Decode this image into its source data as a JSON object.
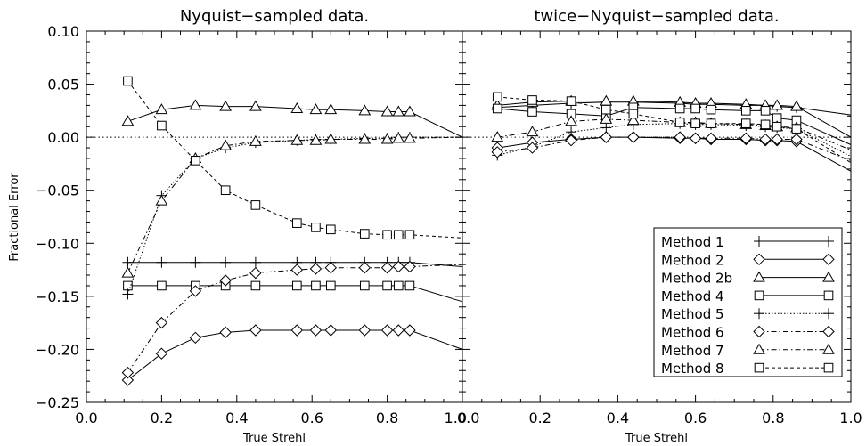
{
  "chart_data": [
    {
      "type": "line",
      "title": "Nyquist−sampled data.",
      "xlabel": "True Strehl",
      "ylabel": "Fractional Error",
      "xlim": [
        0.0,
        1.0
      ],
      "ylim": [
        -0.25,
        0.1
      ],
      "xticks": [
        0.0,
        0.2,
        0.4,
        0.6,
        0.8,
        1.0
      ],
      "xtick_labels": [
        "0.0",
        "0.2",
        "0.4",
        "0.6",
        "0.8",
        "1.0"
      ],
      "yticks": [
        -0.25,
        -0.2,
        -0.15,
        -0.1,
        -0.05,
        0.0,
        0.05,
        0.1
      ],
      "ytick_labels": [
        "−0.25",
        "−0.20",
        "−0.15",
        "−0.10",
        "−0.05",
        "0.00",
        "0.05",
        "0.10"
      ],
      "zero_line": true,
      "legend": "none",
      "series": [
        {
          "name": "Method 1",
          "marker": "plus",
          "dash": "solid",
          "x": [
            0.11,
            0.2,
            0.29,
            0.37,
            0.45,
            0.56,
            0.61,
            0.65,
            0.74,
            0.8,
            0.83,
            0.86,
            1.0
          ],
          "y": [
            -0.118,
            -0.118,
            -0.118,
            -0.118,
            -0.118,
            -0.118,
            -0.118,
            -0.118,
            -0.118,
            -0.118,
            -0.118,
            -0.118,
            -0.122
          ]
        },
        {
          "name": "Method 2",
          "marker": "diamond",
          "dash": "solid",
          "x": [
            0.11,
            0.2,
            0.29,
            0.37,
            0.45,
            0.56,
            0.61,
            0.65,
            0.74,
            0.8,
            0.83,
            0.86,
            1.0
          ],
          "y": [
            -0.229,
            -0.204,
            -0.189,
            -0.184,
            -0.182,
            -0.182,
            -0.182,
            -0.182,
            -0.182,
            -0.182,
            -0.182,
            -0.182,
            -0.2
          ]
        },
        {
          "name": "Method 2b",
          "marker": "triangle",
          "dash": "solid",
          "x": [
            0.11,
            0.2,
            0.29,
            0.37,
            0.45,
            0.56,
            0.61,
            0.65,
            0.74,
            0.8,
            0.83,
            0.86,
            1.0
          ],
          "y": [
            0.015,
            0.026,
            0.03,
            0.029,
            0.029,
            0.027,
            0.026,
            0.026,
            0.025,
            0.024,
            0.024,
            0.024,
            0.0
          ]
        },
        {
          "name": "Method 4",
          "marker": "square",
          "dash": "solid",
          "x": [
            0.11,
            0.2,
            0.29,
            0.37,
            0.45,
            0.56,
            0.61,
            0.65,
            0.74,
            0.8,
            0.83,
            0.86,
            1.0
          ],
          "y": [
            -0.14,
            -0.14,
            -0.14,
            -0.14,
            -0.14,
            -0.14,
            -0.14,
            -0.14,
            -0.14,
            -0.14,
            -0.14,
            -0.14,
            -0.155
          ]
        },
        {
          "name": "Method 5",
          "marker": "plus",
          "dash": "dotted",
          "x": [
            0.11,
            0.2,
            0.29,
            0.37,
            0.45,
            0.56,
            0.61,
            0.65,
            0.74,
            0.8,
            0.83,
            0.86,
            1.0
          ],
          "y": [
            -0.148,
            -0.055,
            -0.02,
            -0.01,
            -0.005,
            -0.003,
            -0.002,
            -0.002,
            -0.001,
            -0.001,
            0.0,
            0.0,
            0.0
          ]
        },
        {
          "name": "Method 6",
          "marker": "diamond",
          "dash": "dashdot",
          "x": [
            0.11,
            0.2,
            0.29,
            0.37,
            0.45,
            0.56,
            0.61,
            0.65,
            0.74,
            0.8,
            0.83,
            0.86,
            1.0
          ],
          "y": [
            -0.222,
            -0.175,
            -0.145,
            -0.135,
            -0.128,
            -0.125,
            -0.124,
            -0.123,
            -0.123,
            -0.123,
            -0.122,
            -0.122,
            -0.12
          ]
        },
        {
          "name": "Method 7",
          "marker": "triangle",
          "dash": "dashdot",
          "x": [
            0.11,
            0.2,
            0.29,
            0.37,
            0.45,
            0.56,
            0.61,
            0.65,
            0.74,
            0.8,
            0.83,
            0.86,
            1.0
          ],
          "y": [
            -0.128,
            -0.06,
            -0.02,
            -0.008,
            -0.004,
            -0.003,
            -0.003,
            -0.002,
            -0.002,
            -0.002,
            -0.001,
            -0.001,
            0.0
          ]
        },
        {
          "name": "Method 8",
          "marker": "square",
          "dash": "dashed",
          "x": [
            0.11,
            0.2,
            0.29,
            0.37,
            0.45,
            0.56,
            0.61,
            0.65,
            0.74,
            0.8,
            0.83,
            0.86,
            1.0
          ],
          "y": [
            0.053,
            0.011,
            -0.022,
            -0.05,
            -0.064,
            -0.081,
            -0.085,
            -0.087,
            -0.091,
            -0.092,
            -0.092,
            -0.092,
            -0.095
          ]
        }
      ]
    },
    {
      "type": "line",
      "title": "twice−Nyquist−sampled data.",
      "xlabel": "True Strehl",
      "ylabel": "",
      "xlim": [
        0.0,
        1.0
      ],
      "ylim": [
        -0.25,
        0.1
      ],
      "xticks": [
        0.0,
        0.2,
        0.4,
        0.6,
        0.8,
        1.0
      ],
      "xtick_labels": [
        "0.0",
        "0.2",
        "0.4",
        "0.6",
        "0.8",
        "1.0"
      ],
      "zero_line": true,
      "legend": "lower-right",
      "series": [
        {
          "name": "Method 1",
          "marker": "plus",
          "dash": "solid",
          "x": [
            0.09,
            0.18,
            0.28,
            0.37,
            0.44,
            0.56,
            0.6,
            0.64,
            0.73,
            0.78,
            0.81,
            0.86,
            1.0
          ],
          "y": [
            0.028,
            0.03,
            0.032,
            0.033,
            0.033,
            0.032,
            0.031,
            0.031,
            0.03,
            0.03,
            0.029,
            0.028,
            0.021
          ]
        },
        {
          "name": "Method 2",
          "marker": "diamond",
          "dash": "solid",
          "x": [
            0.09,
            0.18,
            0.28,
            0.37,
            0.44,
            0.56,
            0.6,
            0.64,
            0.73,
            0.78,
            0.81,
            0.86,
            1.0
          ],
          "y": [
            -0.01,
            -0.005,
            -0.002,
            0.0,
            0.0,
            -0.001,
            -0.001,
            -0.002,
            -0.002,
            -0.003,
            -0.003,
            -0.004,
            -0.032
          ]
        },
        {
          "name": "Method 2b",
          "marker": "triangle",
          "dash": "solid",
          "x": [
            0.09,
            0.18,
            0.28,
            0.37,
            0.44,
            0.56,
            0.6,
            0.64,
            0.73,
            0.78,
            0.81,
            0.86,
            1.0
          ],
          "y": [
            0.03,
            0.033,
            0.034,
            0.034,
            0.034,
            0.033,
            0.032,
            0.032,
            0.031,
            0.03,
            0.03,
            0.029,
            0.0
          ]
        },
        {
          "name": "Method 4",
          "marker": "square",
          "dash": "solid",
          "x": [
            0.09,
            0.18,
            0.28,
            0.37,
            0.44,
            0.56,
            0.6,
            0.64,
            0.73,
            0.78,
            0.81,
            0.86,
            1.0
          ],
          "y": [
            0.027,
            0.024,
            0.022,
            0.02,
            0.028,
            0.027,
            0.027,
            0.026,
            0.025,
            0.025,
            0.018,
            0.016,
            -0.007
          ]
        },
        {
          "name": "Method 5",
          "marker": "plus",
          "dash": "dotted",
          "x": [
            0.09,
            0.18,
            0.28,
            0.37,
            0.44,
            0.56,
            0.6,
            0.64,
            0.73,
            0.78,
            0.81,
            0.86,
            1.0
          ],
          "y": [
            -0.017,
            -0.009,
            0.005,
            0.009,
            0.012,
            0.013,
            0.012,
            0.012,
            0.011,
            0.01,
            0.009,
            0.008,
            -0.018
          ]
        },
        {
          "name": "Method 6",
          "marker": "diamond",
          "dash": "dashdot",
          "x": [
            0.09,
            0.18,
            0.28,
            0.37,
            0.44,
            0.56,
            0.6,
            0.64,
            0.73,
            0.78,
            0.81,
            0.86,
            1.0
          ],
          "y": [
            -0.014,
            -0.01,
            -0.003,
            0.0,
            0.0,
            0.0,
            -0.001,
            -0.001,
            -0.001,
            -0.002,
            -0.002,
            -0.002,
            -0.022
          ]
        },
        {
          "name": "Method 7",
          "marker": "triangle",
          "dash": "dashdot",
          "x": [
            0.09,
            0.18,
            0.28,
            0.37,
            0.44,
            0.56,
            0.6,
            0.64,
            0.73,
            0.78,
            0.81,
            0.86,
            1.0
          ],
          "y": [
            0.0,
            0.005,
            0.015,
            0.017,
            0.016,
            0.014,
            0.014,
            0.013,
            0.012,
            0.011,
            0.01,
            0.009,
            -0.012
          ]
        },
        {
          "name": "Method 8",
          "marker": "square",
          "dash": "dashed",
          "x": [
            0.09,
            0.18,
            0.28,
            0.37,
            0.44,
            0.56,
            0.6,
            0.64,
            0.73,
            0.78,
            0.81,
            0.86,
            1.0
          ],
          "y": [
            0.038,
            0.035,
            0.034,
            0.026,
            0.022,
            0.014,
            0.013,
            0.013,
            0.013,
            0.012,
            0.01,
            0.008,
            -0.024
          ]
        }
      ]
    }
  ]
}
